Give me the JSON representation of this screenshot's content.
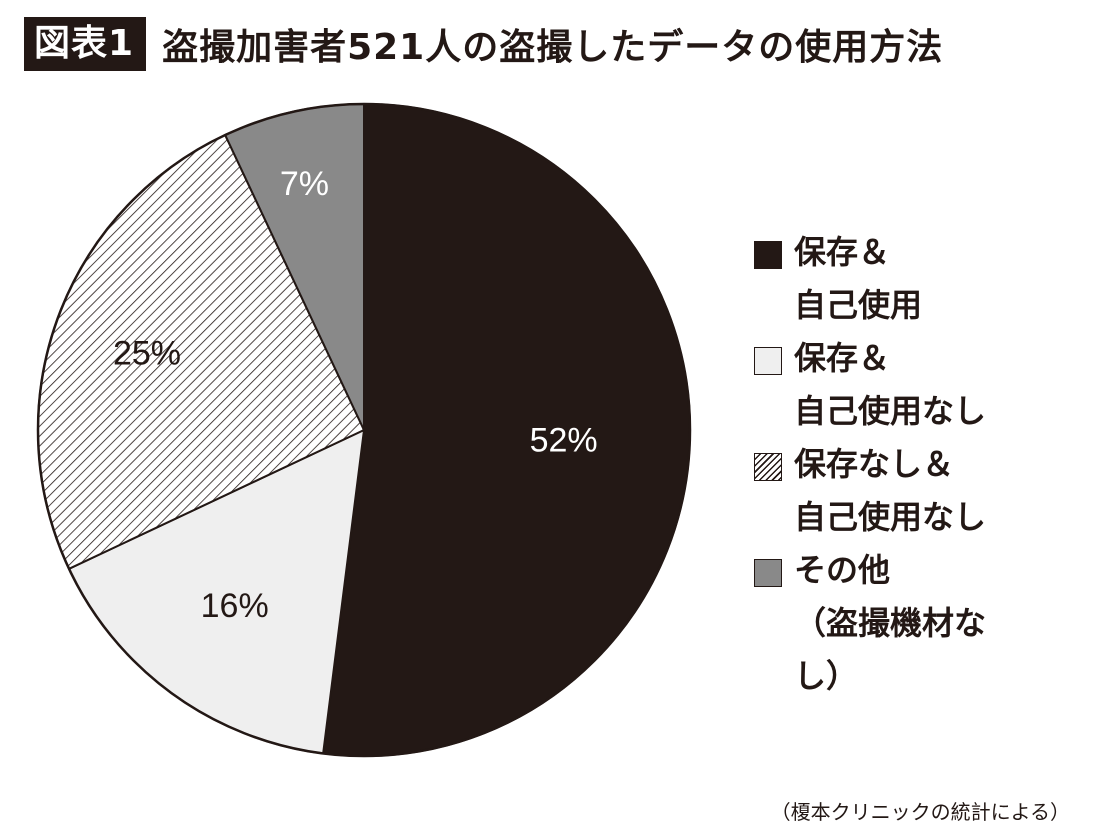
{
  "header": {
    "figure_label": "図表1",
    "title": "盗撮加害者521人の盗撮したデータの使用方法"
  },
  "chart_data": {
    "type": "pie",
    "title": "盗撮加害者521人の盗撮したデータの使用方法",
    "start_angle_deg": 0,
    "direction": "clockwise",
    "slices": [
      {
        "label": "保存＆自己使用",
        "value": 52,
        "display": "52%",
        "fill": "#231815",
        "pattern": "solid",
        "label_color": "#ffffff"
      },
      {
        "label": "保存＆自己使用なし",
        "value": 16,
        "display": "16%",
        "fill": "#efefef",
        "pattern": "solid",
        "label_color": "#231815"
      },
      {
        "label": "保存なし＆自己使用なし",
        "value": 25,
        "display": "25%",
        "fill": "#ffffff",
        "pattern": "hatch",
        "hatch_color": "#231815",
        "label_color": "#231815"
      },
      {
        "label": "その他（盗撮機材なし）",
        "value": 7,
        "display": "7%",
        "fill": "#898989",
        "pattern": "solid",
        "label_color": "#ffffff"
      }
    ],
    "legend_position": "right"
  },
  "legend": [
    {
      "text": "保存＆\n自己使用",
      "fill": "#231815",
      "pattern": "solid",
      "border": "#231815"
    },
    {
      "text": "保存＆\n自己使用なし",
      "fill": "#efefef",
      "pattern": "solid",
      "border": "#231815"
    },
    {
      "text": "保存なし＆\n自己使用なし",
      "fill": "#ffffff",
      "pattern": "hatch",
      "border": "#231815"
    },
    {
      "text": "その他\n（盗撮機材なし）",
      "fill": "#898989",
      "pattern": "solid",
      "border": "#231815"
    }
  ],
  "source_note": "（榎本クリニックの統計による）"
}
